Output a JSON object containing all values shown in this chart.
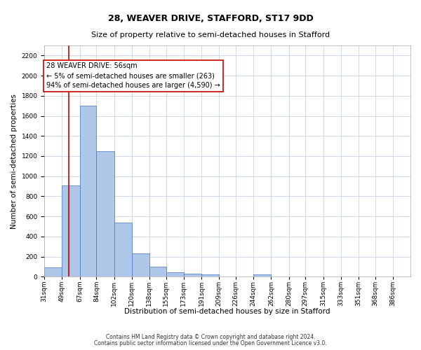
{
  "title": "28, WEAVER DRIVE, STAFFORD, ST17 9DD",
  "subtitle": "Size of property relative to semi-detached houses in Stafford",
  "xlabel": "Distribution of semi-detached houses by size in Stafford",
  "ylabel": "Number of semi-detached properties",
  "footnote1": "Contains HM Land Registry data © Crown copyright and database right 2024.",
  "footnote2": "Contains public sector information licensed under the Open Government Licence v3.0.",
  "annotation_title": "28 WEAVER DRIVE: 56sqm",
  "annotation_line1": "← 5% of semi-detached houses are smaller (263)",
  "annotation_line2": "94% of semi-detached houses are larger (4,590) →",
  "property_size": 56,
  "bar_left_edges": [
    31,
    49,
    67,
    84,
    102,
    120,
    138,
    155,
    173,
    191,
    209,
    226,
    244,
    262,
    280,
    297,
    315,
    333,
    351,
    368
  ],
  "bar_widths": [
    18,
    18,
    17,
    18,
    18,
    18,
    17,
    18,
    18,
    18,
    17,
    18,
    18,
    18,
    17,
    18,
    18,
    18,
    17,
    18
  ],
  "bar_heights": [
    93,
    910,
    1700,
    1250,
    540,
    235,
    100,
    42,
    30,
    20,
    0,
    0,
    22,
    0,
    0,
    0,
    0,
    0,
    0,
    0
  ],
  "bar_color": "#aec6e8",
  "bar_edge_color": "#4472c4",
  "red_line_color": "#cc0000",
  "ylim": [
    0,
    2300
  ],
  "yticks": [
    0,
    200,
    400,
    600,
    800,
    1000,
    1200,
    1400,
    1600,
    1800,
    2000,
    2200
  ],
  "x_tick_labels": [
    "31sqm",
    "49sqm",
    "67sqm",
    "84sqm",
    "102sqm",
    "120sqm",
    "138sqm",
    "155sqm",
    "173sqm",
    "191sqm",
    "209sqm",
    "226sqm",
    "244sqm",
    "262sqm",
    "280sqm",
    "297sqm",
    "315sqm",
    "333sqm",
    "351sqm",
    "368sqm",
    "386sqm"
  ],
  "x_tick_positions": [
    31,
    49,
    67,
    84,
    102,
    120,
    138,
    155,
    173,
    191,
    209,
    226,
    244,
    262,
    280,
    297,
    315,
    333,
    351,
    368,
    386
  ],
  "background_color": "#ffffff",
  "grid_color": "#c8d4e8",
  "title_fontsize": 9,
  "subtitle_fontsize": 8,
  "axis_label_fontsize": 7.5,
  "tick_fontsize": 6.5,
  "annotation_fontsize": 7,
  "annotation_box_color": "#ffffff",
  "annotation_border_color": "#cc0000",
  "footnote_fontsize": 5.5
}
